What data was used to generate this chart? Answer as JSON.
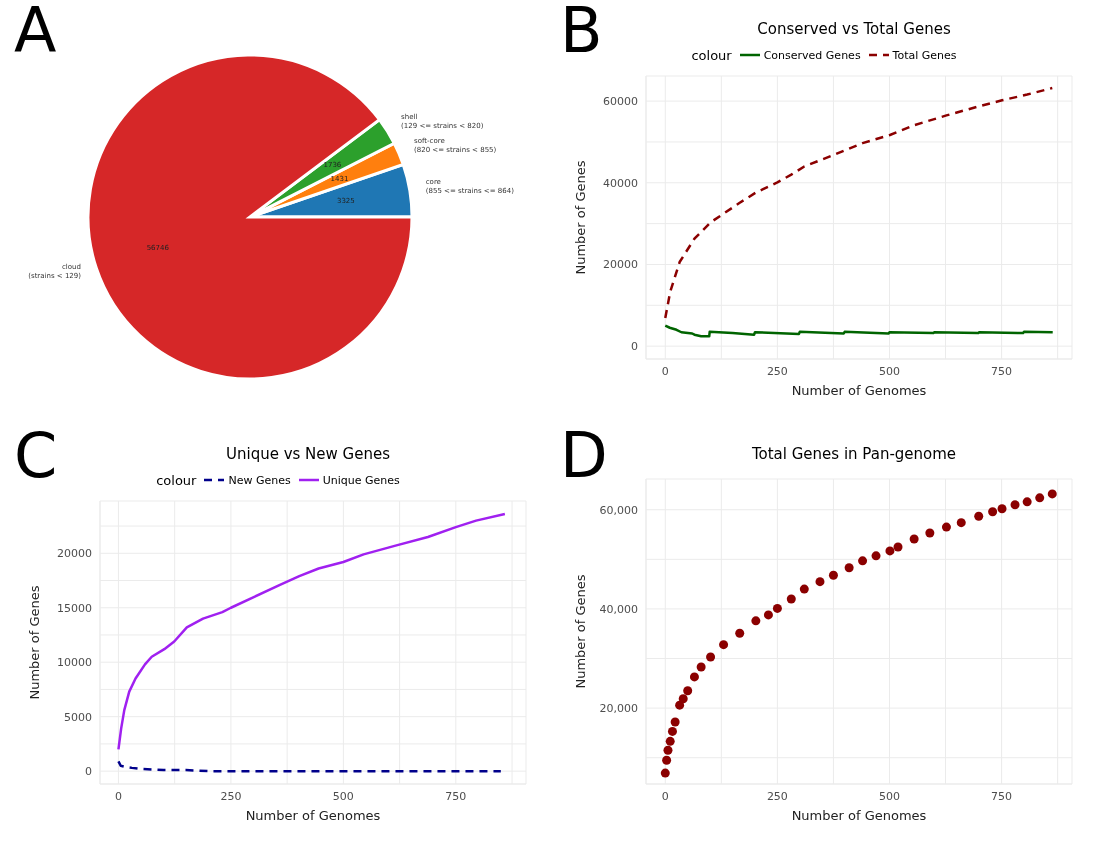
{
  "chart_data": [
    {
      "type": "pie",
      "annotations": [
        "A"
      ],
      "categories": [
        "core\n(855 <= strains <= 864)",
        "soft-core\n(820 <= strains < 855)",
        "shell\n(129 <= strains < 820)",
        "cloud\n(strains < 129)"
      ],
      "values": [
        3325,
        1431,
        1736,
        56746
      ],
      "colors": [
        "#1f77b4",
        "#ff7f0e",
        "#2ca02c",
        "#d62728"
      ],
      "data_labels": true
    },
    {
      "type": "line",
      "title": "Conserved vs Total Genes",
      "annotations": [
        "B"
      ],
      "xlabel": "Number of Genomes",
      "ylabel": "Number of Genes",
      "legend_title": "colour",
      "legend": "top",
      "grid": true,
      "xlim": [
        -43,
        907
      ],
      "ylim": [
        -3150,
        66150
      ],
      "xticks": [
        0,
        {
          "value": 125,
          "label": null
        },
        250,
        {
          "value": 375,
          "label": null
        },
        500,
        {
          "value": 625,
          "label": null
        },
        750,
        {
          "value": 875,
          "label": null
        }
      ],
      "yticks": [
        0,
        {
          "value": 10000,
          "label": null
        },
        20000,
        {
          "value": 30000,
          "label": null
        },
        40000,
        {
          "value": 50000,
          "label": null
        },
        60000
      ],
      "series": [
        {
          "name": "Conserved Genes",
          "color": "#006400",
          "line_style": "solid",
          "x": [
            0,
            10,
            25,
            36,
            60,
            65,
            80,
            98,
            99,
            150,
            198,
            200,
            298,
            300,
            398,
            400,
            498,
            500,
            598,
            600,
            698,
            700,
            798,
            800,
            864
          ],
          "values": [
            5000,
            4500,
            4000,
            3400,
            3100,
            2800,
            2400,
            2400,
            3500,
            3200,
            2800,
            3400,
            3000,
            3500,
            3100,
            3500,
            3100,
            3400,
            3200,
            3400,
            3200,
            3400,
            3200,
            3500,
            3400
          ]
        },
        {
          "name": "Total Genes",
          "color": "#8b0000",
          "line_style": "dashed",
          "x": [
            0,
            11,
            32,
            65,
            101,
            166,
            202,
            250,
            281,
            310,
            375,
            440,
            501,
            519,
            555,
            627,
            699,
            751,
            807,
            863
          ],
          "values": [
            6900,
            13300,
            20600,
            26300,
            30300,
            35100,
            37600,
            40100,
            42000,
            44000,
            46800,
            49700,
            51700,
            52500,
            54100,
            56500,
            58700,
            60200,
            61600,
            63200
          ]
        }
      ]
    },
    {
      "type": "line",
      "title": "Unique vs New Genes",
      "annotations": [
        "C"
      ],
      "xlabel": "Number of Genomes",
      "ylabel": "Number of Genes",
      "legend_title": "colour",
      "legend": "top",
      "grid": true,
      "xlim": [
        -41,
        906
      ],
      "ylim": [
        -1180,
        24800
      ],
      "xticks": [
        0,
        {
          "value": 125,
          "label": null
        },
        250,
        {
          "value": 375,
          "label": null
        },
        500,
        {
          "value": 625,
          "label": null
        },
        750,
        {
          "value": 875,
          "label": null
        }
      ],
      "yticks": [
        0,
        {
          "value": 2500,
          "label": null
        },
        5000,
        {
          "value": 7500,
          "label": null
        },
        10000,
        {
          "value": 12500,
          "label": null
        },
        15000,
        {
          "value": 17500,
          "label": null
        },
        20000,
        {
          "value": 22500,
          "label": null
        }
      ],
      "series": [
        {
          "name": "New Genes",
          "color": "#00008b",
          "line_style": "dashed",
          "x": [
            0,
            5,
            15,
            30,
            50,
            100,
            150,
            200,
            300,
            400,
            500,
            600,
            700,
            850
          ],
          "values": [
            900,
            500,
            400,
            300,
            200,
            100,
            100,
            0,
            0,
            0,
            0,
            0,
            0,
            0
          ]
        },
        {
          "name": "Unique Genes",
          "color": "#a020f0",
          "line_style": "solid",
          "x": [
            0,
            6,
            13,
            24,
            38,
            59,
            74,
            102,
            124,
            152,
            188,
            231,
            250,
            302,
            359,
            402,
            445,
            500,
            545,
            616,
            688,
            750,
            795,
            859
          ],
          "values": [
            2000,
            3900,
            5600,
            7300,
            8500,
            9800,
            10500,
            11200,
            11900,
            13200,
            14000,
            14600,
            15000,
            16000,
            17100,
            17900,
            18600,
            19200,
            19900,
            20700,
            21500,
            22400,
            23000,
            23600
          ]
        }
      ]
    },
    {
      "type": "scatter",
      "title": "Total Genes in Pan-genome",
      "annotations": [
        "D"
      ],
      "xlabel": "Number of Genomes",
      "ylabel": "Number of Genes",
      "grid": true,
      "marker": "circle",
      "xlim": [
        -43,
        907
      ],
      "ylim": [
        4700,
        66200
      ],
      "xticks": [
        0,
        {
          "value": 125,
          "label": null
        },
        250,
        {
          "value": 375,
          "label": null
        },
        500,
        {
          "value": 625,
          "label": null
        },
        750,
        {
          "value": 875,
          "label": null
        }
      ],
      "yticks": [
        {
          "value": 10000,
          "label": null
        },
        {
          "value": 20000,
          "label": "20,000"
        },
        {
          "value": 30000,
          "label": null
        },
        {
          "value": 40000,
          "label": "40,000"
        },
        {
          "value": 50000,
          "label": null
        },
        {
          "value": 60000,
          "label": "60,000"
        }
      ],
      "series": [
        {
          "color": "#8b0000",
          "x": [
            0,
            3,
            6,
            11,
            16,
            22,
            32,
            40,
            50,
            65,
            80,
            101,
            130,
            166,
            202,
            230,
            250,
            281,
            310,
            345,
            375,
            410,
            440,
            470,
            501,
            519,
            555,
            590,
            627,
            660,
            699,
            730,
            751,
            780,
            807,
            835,
            863
          ],
          "values": [
            6900,
            9500,
            11500,
            13300,
            15300,
            17200,
            20600,
            21900,
            23500,
            26300,
            28300,
            30300,
            32800,
            35100,
            37600,
            38800,
            40100,
            42000,
            44000,
            45500,
            46800,
            48300,
            49700,
            50700,
            51700,
            52500,
            54100,
            55300,
            56500,
            57400,
            58700,
            59600,
            60200,
            61000,
            61600,
            62400,
            63200
          ]
        }
      ]
    }
  ]
}
